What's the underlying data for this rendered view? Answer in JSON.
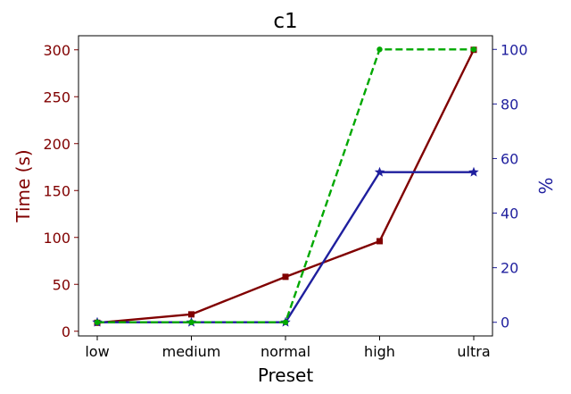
{
  "chart_data": {
    "type": "line",
    "title": "c1",
    "xlabel": "Preset",
    "ylabel_left": "Time (s)",
    "ylabel_right": "%",
    "categories": [
      "low",
      "medium",
      "normal",
      "high",
      "ultra"
    ],
    "y_left": {
      "range": [
        -5,
        315
      ],
      "ticks": [
        "0",
        "50",
        "100",
        "150",
        "200",
        "250",
        "300"
      ],
      "tick_values": [
        0,
        50,
        100,
        150,
        200,
        250,
        300
      ]
    },
    "y_right": {
      "range": [
        -5,
        105
      ],
      "ticks": [
        "0",
        "20",
        "40",
        "60",
        "80",
        "100"
      ],
      "tick_values": [
        0,
        20,
        40,
        60,
        80,
        100
      ]
    },
    "grid": false,
    "legend": "none",
    "series": [
      {
        "axis": "left",
        "color": "#800000",
        "marker": "square",
        "dash": "solid",
        "values": [
          9,
          18,
          58,
          96,
          300
        ]
      },
      {
        "axis": "right",
        "color": "#1f1f9e",
        "marker": "star",
        "dash": "solid",
        "values": [
          0,
          0,
          0,
          55,
          55
        ]
      },
      {
        "axis": "right",
        "color": "#00a800",
        "marker": "circle",
        "dash": "dashed",
        "values": [
          0,
          0,
          0,
          100,
          100
        ]
      }
    ],
    "colors": {
      "left_axis": "#800000",
      "right_axis": "#1f1f9e"
    }
  }
}
